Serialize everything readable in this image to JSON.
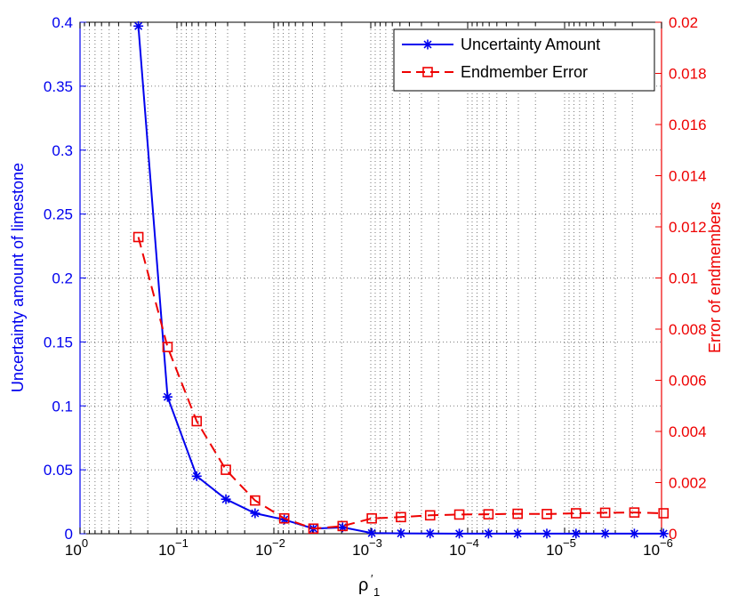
{
  "chart_data": {
    "type": "line",
    "title": "",
    "xlabel_symbol": "ρ",
    "xlabel_prime": "′",
    "xlabel_sub": "1",
    "ylabel": "Uncertainty amount of limestone",
    "y2label": "Error of endmembers",
    "xscale": "log-reversed",
    "xlim": [
      1,
      1e-06
    ],
    "ylim": [
      0,
      0.4
    ],
    "y2lim": [
      0,
      0.02
    ],
    "xticks": [
      {
        "base": "10",
        "exp": "0"
      },
      {
        "base": "10",
        "exp": "−1"
      },
      {
        "base": "10",
        "exp": "−2"
      },
      {
        "base": "10",
        "exp": "−3"
      },
      {
        "base": "10",
        "exp": "−4"
      },
      {
        "base": "10",
        "exp": "−5"
      },
      {
        "base": "10",
        "exp": "−6"
      }
    ],
    "yticks": [
      "0",
      "0.05",
      "0.1",
      "0.15",
      "0.2",
      "0.25",
      "0.3",
      "0.35",
      "0.4"
    ],
    "y2ticks": [
      "0",
      "0.002",
      "0.004",
      "0.006",
      "0.008",
      "0.01",
      "0.012",
      "0.014",
      "0.016",
      "0.018",
      "0.02"
    ],
    "grid": true,
    "legend_position": "top-right",
    "x": [
      0.25,
      0.125,
      0.0625,
      0.03125,
      0.015625,
      0.0078125,
      0.00390625,
      0.001953125,
      0.0009765625,
      0.00048828125,
      0.000244140625,
      0.0001220703125,
      6.103515625e-05,
      3.0517578125e-05,
      1.52587890625e-05,
      7.62939453125e-06,
      3.814697265625e-06,
      1.9073486328125e-06,
      9.5367431640625e-07
    ],
    "series": [
      {
        "name": "Uncertainty Amount",
        "axis": "left",
        "color": "#0000ee",
        "marker": "asterisk",
        "linestyle": "solid",
        "values": [
          0.397,
          0.107,
          0.045,
          0.027,
          0.016,
          0.011,
          0.004,
          0.005,
          0.0005,
          0.0003,
          0.0002,
          0.0001,
          0.0001,
          0.0001,
          0.0001,
          0.0001,
          0.0001,
          0.0001,
          0.0001
        ]
      },
      {
        "name": "Endmember Error",
        "axis": "right",
        "color": "#ee0000",
        "marker": "square",
        "linestyle": "dashed",
        "values": [
          0.0116,
          0.0073,
          0.0044,
          0.0025,
          0.0013,
          0.0006,
          0.0002,
          0.0003,
          0.0006,
          0.00065,
          0.00072,
          0.00075,
          0.00076,
          0.00078,
          0.00077,
          0.0008,
          0.00082,
          0.00083,
          0.0008
        ]
      }
    ]
  }
}
